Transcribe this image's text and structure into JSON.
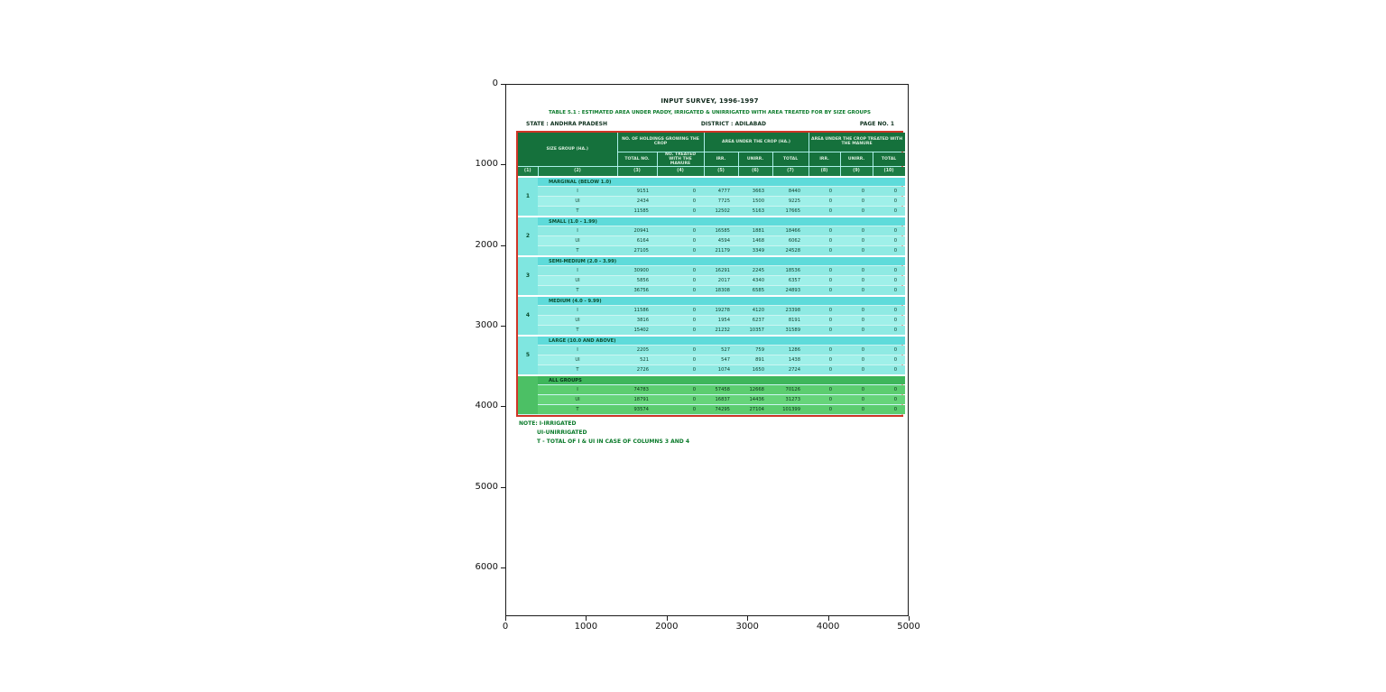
{
  "figure": {
    "x_ticks": [
      "0",
      "1000",
      "2000",
      "3000",
      "4000",
      "5000"
    ],
    "y_ticks": [
      "0",
      "1000",
      "2000",
      "3000",
      "4000",
      "5000",
      "6000"
    ]
  },
  "scan": {
    "title1": "INPUT SURVEY, 1996-1997",
    "title2": "TABLE 5.1 : ESTIMATED AREA UNDER PADDY, IRRIGATED & UNIRRIGATED WITH AREA TREATED FOR BY SIZE GROUPS",
    "state": "STATE : ANDHRA PRADESH",
    "district": "DISTRICT : ADILABAD",
    "page_no": "PAGE NO. 1",
    "notes": [
      "NOTE: I-IRRIGATED",
      "UI-UNIRRIGATED",
      "T - TOTAL OF I & UI IN CASE OF COLUMNS 3 AND 4"
    ]
  },
  "table": {
    "header": {
      "size_group": "SIZE GROUP (HA.)",
      "holdings": "NO. OF HOLDINGS GROWING THE CROP",
      "holdings_sub": [
        "TOTAL NO.",
        "NO. TREATED WITH THE MANURE"
      ],
      "area": "AREA UNDER THE CROP (HA.)",
      "area_treated": "AREA UNDER THE CROP TREATED WITH THE MANURE",
      "iut": [
        "IRR.",
        "UNIRR.",
        "TOTAL"
      ],
      "col_numbers": [
        "(1)",
        "(2)",
        "(3)",
        "(4)",
        "(5)",
        "(6)",
        "(7)",
        "(8)",
        "(9)",
        "(10)"
      ]
    },
    "groups": [
      {
        "sno": "1",
        "label": "MARGINAL (BELOW 1.0)",
        "all": false,
        "rows": [
          [
            "I",
            "9151",
            "0",
            "4777",
            "3663",
            "8440",
            "0",
            "0",
            "0"
          ],
          [
            "UI",
            "2434",
            "0",
            "7725",
            "1500",
            "9225",
            "0",
            "0",
            "0"
          ],
          [
            "T",
            "11585",
            "0",
            "12502",
            "5163",
            "17665",
            "0",
            "0",
            "0"
          ]
        ]
      },
      {
        "sno": "2",
        "label": "SMALL (1.0 - 1.99)",
        "all": false,
        "rows": [
          [
            "I",
            "20941",
            "0",
            "16585",
            "1881",
            "18466",
            "0",
            "0",
            "0"
          ],
          [
            "UI",
            "6164",
            "0",
            "4594",
            "1468",
            "6062",
            "0",
            "0",
            "0"
          ],
          [
            "T",
            "27105",
            "0",
            "21179",
            "3349",
            "24528",
            "0",
            "0",
            "0"
          ]
        ]
      },
      {
        "sno": "3",
        "label": "SEMI-MEDIUM (2.0 - 3.99)",
        "all": false,
        "rows": [
          [
            "I",
            "30900",
            "0",
            "16291",
            "2245",
            "18536",
            "0",
            "0",
            "0"
          ],
          [
            "UI",
            "5856",
            "0",
            "2017",
            "4340",
            "6357",
            "0",
            "0",
            "0"
          ],
          [
            "T",
            "36756",
            "0",
            "18308",
            "6585",
            "24893",
            "0",
            "0",
            "0"
          ]
        ]
      },
      {
        "sno": "4",
        "label": "MEDIUM (4.0 - 9.99)",
        "all": false,
        "rows": [
          [
            "I",
            "11586",
            "0",
            "19278",
            "4120",
            "23398",
            "0",
            "0",
            "0"
          ],
          [
            "UI",
            "3816",
            "0",
            "1954",
            "6237",
            "8191",
            "0",
            "0",
            "0"
          ],
          [
            "T",
            "15402",
            "0",
            "21232",
            "10357",
            "31589",
            "0",
            "0",
            "0"
          ]
        ]
      },
      {
        "sno": "5",
        "label": "LARGE (10.0 AND ABOVE)",
        "all": false,
        "rows": [
          [
            "I",
            "2205",
            "0",
            "527",
            "759",
            "1286",
            "0",
            "0",
            "0"
          ],
          [
            "UI",
            "521",
            "0",
            "547",
            "891",
            "1438",
            "0",
            "0",
            "0"
          ],
          [
            "T",
            "2726",
            "0",
            "1074",
            "1650",
            "2724",
            "0",
            "0",
            "0"
          ]
        ]
      },
      {
        "sno": "",
        "label": "ALL GROUPS",
        "all": true,
        "rows": [
          [
            "I",
            "74783",
            "0",
            "57458",
            "12668",
            "70126",
            "0",
            "0",
            "0"
          ],
          [
            "UI",
            "18791",
            "0",
            "16837",
            "14436",
            "31273",
            "0",
            "0",
            "0"
          ],
          [
            "T",
            "93574",
            "0",
            "74295",
            "27104",
            "101399",
            "0",
            "0",
            "0"
          ]
        ]
      }
    ]
  },
  "colors": {
    "table_border_red": "#cf3527",
    "header_green": "#15713c",
    "body_cyan": "#8feae3",
    "all_groups_green": "#5ccd70",
    "note_green": "#0a7a2a"
  }
}
